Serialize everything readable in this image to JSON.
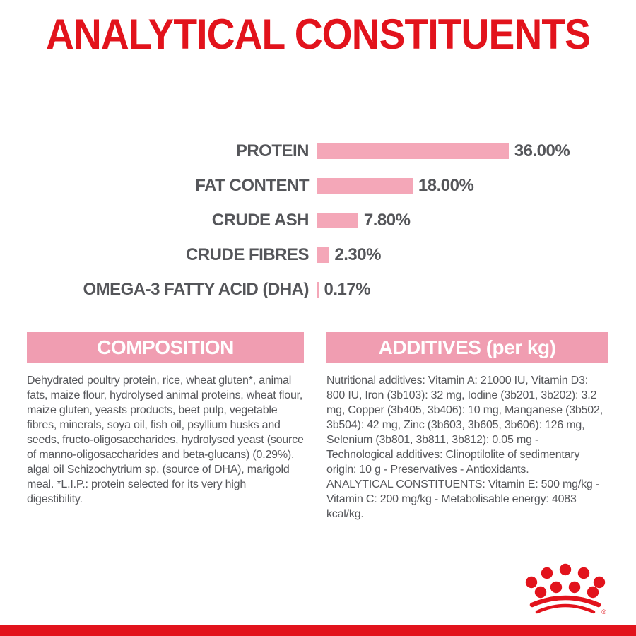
{
  "title": "ANALYTICAL CONSTITUENTS",
  "chart_data": {
    "type": "bar",
    "orientation": "horizontal",
    "title": "ANALYTICAL CONSTITUENTS",
    "categories": [
      "PROTEIN",
      "FAT CONTENT",
      "CRUDE ASH",
      "CRUDE FIBRES",
      "OMEGA-3 FATTY ACID (DHA)"
    ],
    "values": [
      36.0,
      18.0,
      7.8,
      2.3,
      0.17
    ],
    "value_labels": [
      "36.00%",
      "18.00%",
      "7.80%",
      "2.30%",
      "0.17%"
    ],
    "unit": "%",
    "xlim": [
      0,
      40
    ],
    "grid": false,
    "legend": false,
    "bar_color": "#f4a7b8",
    "label_color": "#55565a"
  },
  "sections": {
    "composition": {
      "header": "COMPOSITION",
      "body": "Dehydrated poultry protein, rice, wheat gluten*, animal fats, maize flour, hydrolysed animal proteins, wheat flour, maize gluten, yeasts products, beet pulp, vegetable fibres, minerals, soya oil, fish oil, psyllium husks and seeds, fructo-oligosaccharides, hydrolysed yeast (source of manno-oligosaccharides and beta-glucans) (0.29%), algal oil Schizochytrium sp. (source of DHA), marigold meal. *L.I.P.: protein selected for its very high digestibility."
    },
    "additives": {
      "header": "ADDITIVES (per kg)",
      "body": "Nutritional additives: Vitamin A: 21000 IU, Vitamin D3: 800 IU, Iron (3b103): 32 mg, Iodine (3b201, 3b202): 3.2 mg, Copper (3b405, 3b406): 10 mg, Manganese (3b502, 3b504): 42 mg, Zinc (3b603, 3b605, 3b606): 126 mg, Selenium (3b801, 3b811, 3b812): 0.05 mg - Technological additives: Clinoptilolite of sedimentary origin: 10 g - Preservatives - Antioxidants.\nANALYTICAL CONSTITUENTS: Vitamin E: 500 mg/kg - Vitamin C: 200 mg/kg - Metabolisable energy: 4083 kcal/kg."
    }
  },
  "branding": {
    "logo": "royal-canin-crown",
    "registered_mark": "®"
  },
  "colors": {
    "red": "#e2131c",
    "pink_bar": "#f4a7b8",
    "pink_band": "#f09db1",
    "text_gray": "#55565a"
  }
}
